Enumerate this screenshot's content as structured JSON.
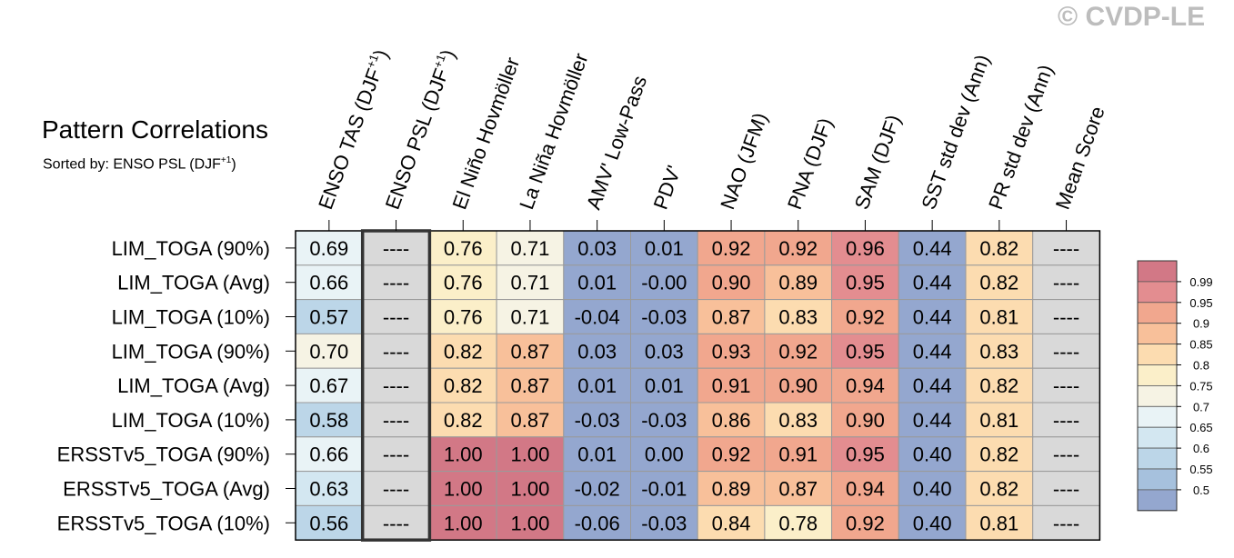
{
  "watermark": "© CVDP-LE",
  "title": "Pattern Correlations",
  "subtitle": {
    "prefix": "Sorted by: ENSO PSL (DJF",
    "sup": "+1",
    "suffix": ")"
  },
  "missing_label": "----",
  "chart_data": {
    "type": "heatmap",
    "title": "Pattern Correlations",
    "columns": [
      {
        "main": "ENSO TAS (DJF",
        "sup": "+1",
        "tail": ")"
      },
      {
        "main": "ENSO PSL (DJF",
        "sup": "+1",
        "tail": ")"
      },
      {
        "main": "El Niño Hovmöller",
        "sup": "",
        "tail": ""
      },
      {
        "main": "La Niña Hovmöller",
        "sup": "",
        "tail": ""
      },
      {
        "main": "AMV' Low-Pass",
        "sup": "",
        "tail": ""
      },
      {
        "main": "PDV'",
        "sup": "",
        "tail": ""
      },
      {
        "main": "NAO (JFM)",
        "sup": "",
        "tail": ""
      },
      {
        "main": "PNA (DJF)",
        "sup": "",
        "tail": ""
      },
      {
        "main": "SAM (DJF)",
        "sup": "",
        "tail": ""
      },
      {
        "main": "SST std dev (Ann)",
        "sup": "",
        "tail": ""
      },
      {
        "main": "PR std dev (Ann)",
        "sup": "",
        "tail": ""
      },
      {
        "main": "Mean Score",
        "sup": "",
        "tail": ""
      }
    ],
    "rows": [
      "LIM_TOGA (90%)",
      "LIM_TOGA (Avg)",
      "LIM_TOGA (10%)",
      "LIM_TOGA (90%)",
      "LIM_TOGA (Avg)",
      "LIM_TOGA (10%)",
      "ERSSTv5_TOGA (90%)",
      "ERSSTv5_TOGA (Avg)",
      "ERSSTv5_TOGA (10%)"
    ],
    "values": [
      [
        "0.69",
        null,
        "0.76",
        "0.71",
        "0.03",
        "0.01",
        "0.92",
        "0.92",
        "0.96",
        "0.44",
        "0.82",
        null
      ],
      [
        "0.66",
        null,
        "0.76",
        "0.71",
        "0.01",
        "-0.00",
        "0.90",
        "0.89",
        "0.95",
        "0.44",
        "0.82",
        null
      ],
      [
        "0.57",
        null,
        "0.76",
        "0.71",
        "-0.04",
        "-0.03",
        "0.87",
        "0.83",
        "0.92",
        "0.44",
        "0.81",
        null
      ],
      [
        "0.70",
        null,
        "0.82",
        "0.87",
        "0.03",
        "0.03",
        "0.93",
        "0.92",
        "0.95",
        "0.44",
        "0.83",
        null
      ],
      [
        "0.67",
        null,
        "0.82",
        "0.87",
        "0.01",
        "0.01",
        "0.91",
        "0.90",
        "0.94",
        "0.44",
        "0.82",
        null
      ],
      [
        "0.58",
        null,
        "0.82",
        "0.87",
        "-0.03",
        "-0.03",
        "0.86",
        "0.83",
        "0.90",
        "0.44",
        "0.81",
        null
      ],
      [
        "0.66",
        null,
        "1.00",
        "1.00",
        "0.01",
        "0.00",
        "0.92",
        "0.91",
        "0.95",
        "0.40",
        "0.82",
        null
      ],
      [
        "0.63",
        null,
        "1.00",
        "1.00",
        "-0.02",
        "-0.01",
        "0.89",
        "0.87",
        "0.94",
        "0.40",
        "0.82",
        null
      ],
      [
        "0.56",
        null,
        "1.00",
        "1.00",
        "-0.06",
        "-0.03",
        "0.84",
        "0.78",
        "0.92",
        "0.40",
        "0.81",
        null
      ]
    ],
    "sorted_by_column": 1,
    "colorbar": {
      "labels": [
        "0.99",
        "0.95",
        "0.9",
        "0.85",
        "0.8",
        "0.75",
        "0.7",
        "0.65",
        "0.6",
        "0.55",
        "0.5"
      ],
      "thresholds": [
        0.5,
        0.55,
        0.6,
        0.65,
        0.7,
        0.75,
        0.8,
        0.85,
        0.9,
        0.95,
        0.99
      ],
      "colors": [
        "#94a7cf",
        "#a6c1dd",
        "#bcd6e8",
        "#d3e7f1",
        "#e9f3f6",
        "#f6f3e4",
        "#fbefc9",
        "#fcdcb0",
        "#f8c09a",
        "#f1a78e",
        "#e38d90",
        "#d27886"
      ],
      "missing_color": "#d9d9d9"
    }
  }
}
